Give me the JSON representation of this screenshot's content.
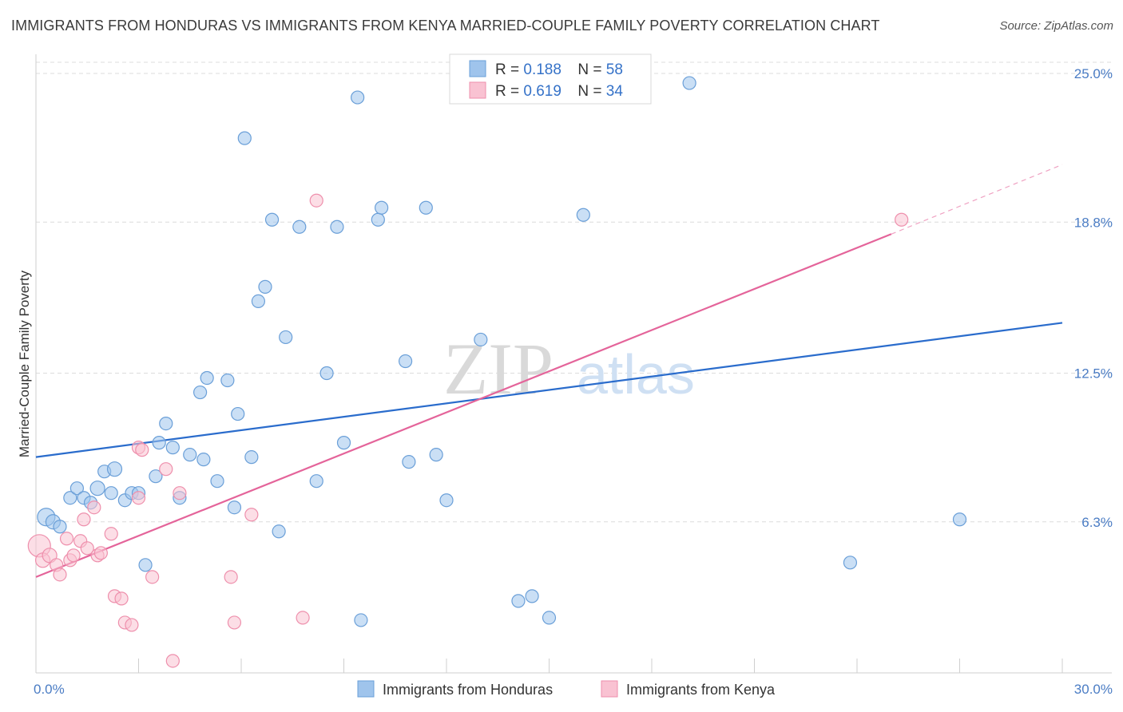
{
  "title": "IMMIGRANTS FROM HONDURAS VS IMMIGRANTS FROM KENYA MARRIED-COUPLE FAMILY POVERTY CORRELATION CHART",
  "source": "Source: ZipAtlas.com",
  "watermark": {
    "zip": "ZIP",
    "atlas": "atlas"
  },
  "chart_data": {
    "type": "scatter",
    "ylabel": "Married-Couple Family Poverty",
    "xlim": [
      0,
      30
    ],
    "ylim": [
      0,
      25.6
    ],
    "x_tick_labels": [
      "0.0%",
      "30.0%"
    ],
    "y_ticks": [
      6.3,
      12.5,
      18.8,
      25.0
    ],
    "y_tick_labels": [
      "6.3%",
      "12.5%",
      "18.8%",
      "25.0%"
    ],
    "legend": [
      {
        "r_label": "R = ",
        "r": "0.188",
        "n_label": "N = ",
        "n": "58"
      },
      {
        "r_label": "R = ",
        "r": "0.619",
        "n_label": "N = ",
        "n": "34"
      }
    ],
    "series": [
      {
        "name": "Immigrants from Honduras",
        "color": "#9fc4ec",
        "stroke": "#6a9fd8",
        "trend_color": "#2a6ccc",
        "trend": [
          [
            0,
            9.0
          ],
          [
            30,
            14.6
          ]
        ],
        "points": [
          [
            0.3,
            6.5,
            11
          ],
          [
            0.5,
            6.3,
            9
          ],
          [
            0.7,
            6.1,
            8
          ],
          [
            1.0,
            7.3,
            8
          ],
          [
            1.2,
            7.7,
            8
          ],
          [
            1.4,
            7.3,
            8
          ],
          [
            1.6,
            7.1,
            8
          ],
          [
            1.8,
            7.7,
            9
          ],
          [
            2.0,
            8.4,
            8
          ],
          [
            2.2,
            7.5,
            8
          ],
          [
            2.3,
            8.5,
            9
          ],
          [
            2.6,
            7.2,
            8
          ],
          [
            2.8,
            7.5,
            8
          ],
          [
            3.0,
            7.5,
            8
          ],
          [
            3.2,
            4.5,
            8
          ],
          [
            3.5,
            8.2,
            8
          ],
          [
            3.6,
            9.6,
            8
          ],
          [
            3.8,
            10.4,
            8
          ],
          [
            4.0,
            9.4,
            8
          ],
          [
            4.2,
            7.3,
            8
          ],
          [
            4.5,
            9.1,
            8
          ],
          [
            4.8,
            11.7,
            8
          ],
          [
            4.9,
            8.9,
            8
          ],
          [
            5.0,
            12.3,
            8
          ],
          [
            5.3,
            8.0,
            8
          ],
          [
            5.6,
            12.2,
            8
          ],
          [
            5.8,
            6.9,
            8
          ],
          [
            5.9,
            10.8,
            8
          ],
          [
            6.1,
            22.3,
            8
          ],
          [
            6.3,
            9.0,
            8
          ],
          [
            6.5,
            15.5,
            8
          ],
          [
            6.7,
            16.1,
            8
          ],
          [
            6.9,
            18.9,
            8
          ],
          [
            7.1,
            5.9,
            8
          ],
          [
            7.3,
            14.0,
            8
          ],
          [
            7.7,
            18.6,
            8
          ],
          [
            8.2,
            8.0,
            8
          ],
          [
            8.5,
            12.5,
            8
          ],
          [
            8.8,
            18.6,
            8
          ],
          [
            9.0,
            9.6,
            8
          ],
          [
            9.4,
            24.0,
            8
          ],
          [
            9.5,
            2.2,
            8
          ],
          [
            10.0,
            18.9,
            8
          ],
          [
            10.1,
            19.4,
            8
          ],
          [
            10.8,
            13.0,
            8
          ],
          [
            10.9,
            8.8,
            8
          ],
          [
            11.4,
            19.4,
            8
          ],
          [
            11.7,
            9.1,
            8
          ],
          [
            12.0,
            7.2,
            8
          ],
          [
            13.0,
            13.9,
            8
          ],
          [
            14.1,
            3.0,
            8
          ],
          [
            14.5,
            3.2,
            8
          ],
          [
            15.0,
            2.3,
            8
          ],
          [
            16.0,
            19.1,
            8
          ],
          [
            19.1,
            24.6,
            8
          ],
          [
            23.8,
            4.6,
            8
          ],
          [
            27.0,
            6.4,
            8
          ]
        ]
      },
      {
        "name": "Immigrants from Kenya",
        "color": "#f9c2d2",
        "stroke": "#ee8fac",
        "trend_color": "#e4649a",
        "trend": [
          [
            0,
            4.0
          ],
          [
            25,
            18.3
          ]
        ],
        "trend_extension": [
          [
            25,
            18.3
          ],
          [
            30,
            21.2
          ]
        ],
        "points": [
          [
            0.1,
            5.3,
            14
          ],
          [
            0.2,
            4.7,
            9
          ],
          [
            0.4,
            4.9,
            9
          ],
          [
            0.6,
            4.5,
            8
          ],
          [
            0.7,
            4.1,
            8
          ],
          [
            0.9,
            5.6,
            8
          ],
          [
            1.0,
            4.7,
            8
          ],
          [
            1.1,
            4.9,
            8
          ],
          [
            1.3,
            5.5,
            8
          ],
          [
            1.4,
            6.4,
            8
          ],
          [
            1.5,
            5.2,
            8
          ],
          [
            1.7,
            6.9,
            8
          ],
          [
            1.8,
            4.9,
            8
          ],
          [
            1.9,
            5.0,
            8
          ],
          [
            2.2,
            5.8,
            8
          ],
          [
            2.3,
            3.2,
            8
          ],
          [
            2.5,
            3.1,
            8
          ],
          [
            2.6,
            2.1,
            8
          ],
          [
            2.8,
            2.0,
            8
          ],
          [
            3.0,
            7.3,
            8
          ],
          [
            3.0,
            9.4,
            8
          ],
          [
            3.1,
            9.3,
            8
          ],
          [
            3.4,
            4.0,
            8
          ],
          [
            3.8,
            8.5,
            8
          ],
          [
            4.0,
            0.5,
            8
          ],
          [
            4.2,
            7.5,
            8
          ],
          [
            5.7,
            4.0,
            8
          ],
          [
            5.8,
            2.1,
            8
          ],
          [
            6.3,
            6.6,
            8
          ],
          [
            7.8,
            2.3,
            8
          ],
          [
            8.2,
            19.7,
            8
          ],
          [
            25.3,
            18.9,
            8
          ]
        ]
      }
    ]
  }
}
